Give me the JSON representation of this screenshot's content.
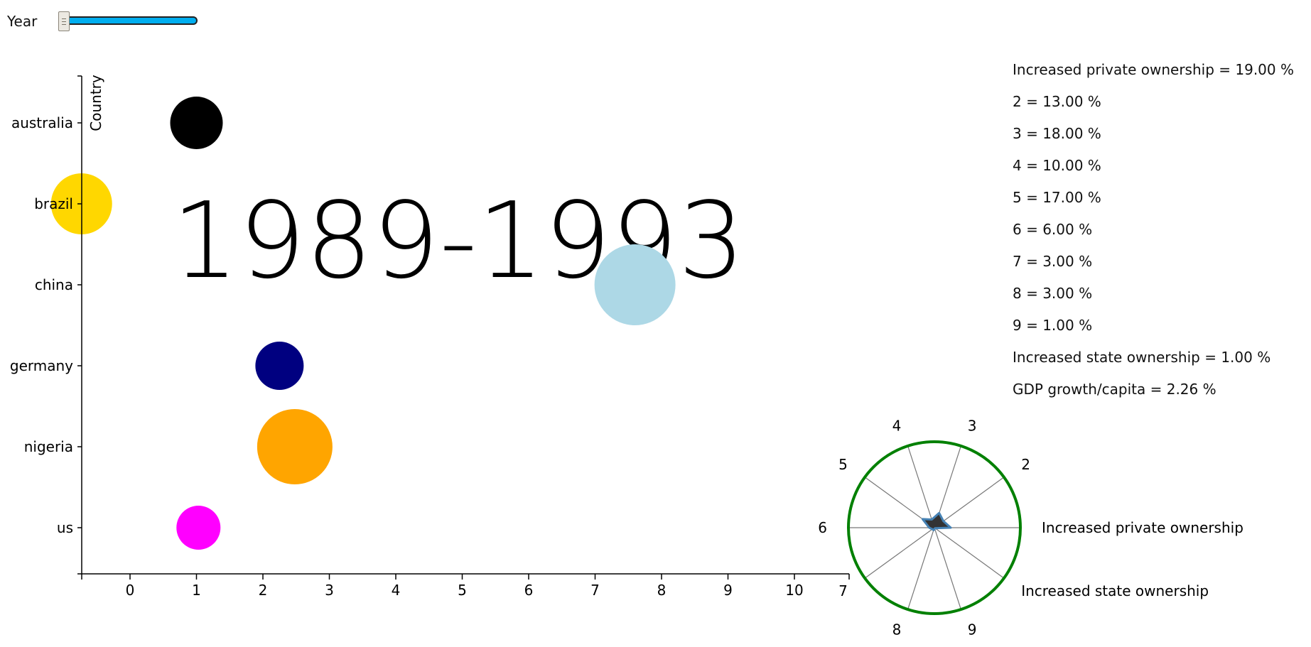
{
  "year_control": {
    "label": "Year",
    "value_fraction": 0.0
  },
  "chart_data": [
    {
      "type": "scatter",
      "title": "1989-1993",
      "ylabel": "Country",
      "xlabel": "",
      "categories": [
        "australia",
        "brazil",
        "china",
        "germany",
        "nigeria",
        "us"
      ],
      "x_ticks": [
        "0",
        "1",
        "2",
        "3",
        "4",
        "5",
        "6",
        "7",
        "8",
        "9",
        "10"
      ],
      "xlim": [
        -0.73,
        10.8
      ],
      "points": [
        {
          "name": "australia",
          "x": 1.0,
          "radius": 37,
          "color": "#000000"
        },
        {
          "name": "brazil",
          "x": -0.73,
          "radius": 43,
          "color": "#ffd700"
        },
        {
          "name": "china",
          "x": 7.6,
          "radius": 57,
          "color": "#add8e6"
        },
        {
          "name": "germany",
          "x": 2.25,
          "radius": 34,
          "color": "#000080"
        },
        {
          "name": "nigeria",
          "x": 2.48,
          "radius": 53,
          "color": "#ffa500"
        },
        {
          "name": "us",
          "x": 1.03,
          "radius": 31,
          "color": "#ff00ff"
        }
      ],
      "grid": false
    },
    {
      "type": "radar",
      "axes": [
        "Increased private ownership",
        "2",
        "3",
        "4",
        "5",
        "6",
        "7",
        "8",
        "9",
        "Increased state ownership"
      ],
      "values": [
        19.0,
        13.0,
        18.0,
        10.0,
        17.0,
        6.0,
        3.0,
        3.0,
        1.0,
        1.0
      ],
      "max": 100,
      "ring_color": "#008000",
      "fill_color": "#333333",
      "stroke_color": "#4682b4"
    }
  ],
  "stats": [
    "Increased private ownership = 19.00 %",
    "2 = 13.00 %",
    "3 = 18.00 %",
    "4 = 10.00 %",
    "5 = 17.00 %",
    "6 = 6.00 %",
    "7 = 3.00 %",
    "8 = 3.00 %",
    "9 = 1.00 %",
    "Increased state ownership = 1.00 %",
    "GDP growth/capita = 2.26 %"
  ]
}
